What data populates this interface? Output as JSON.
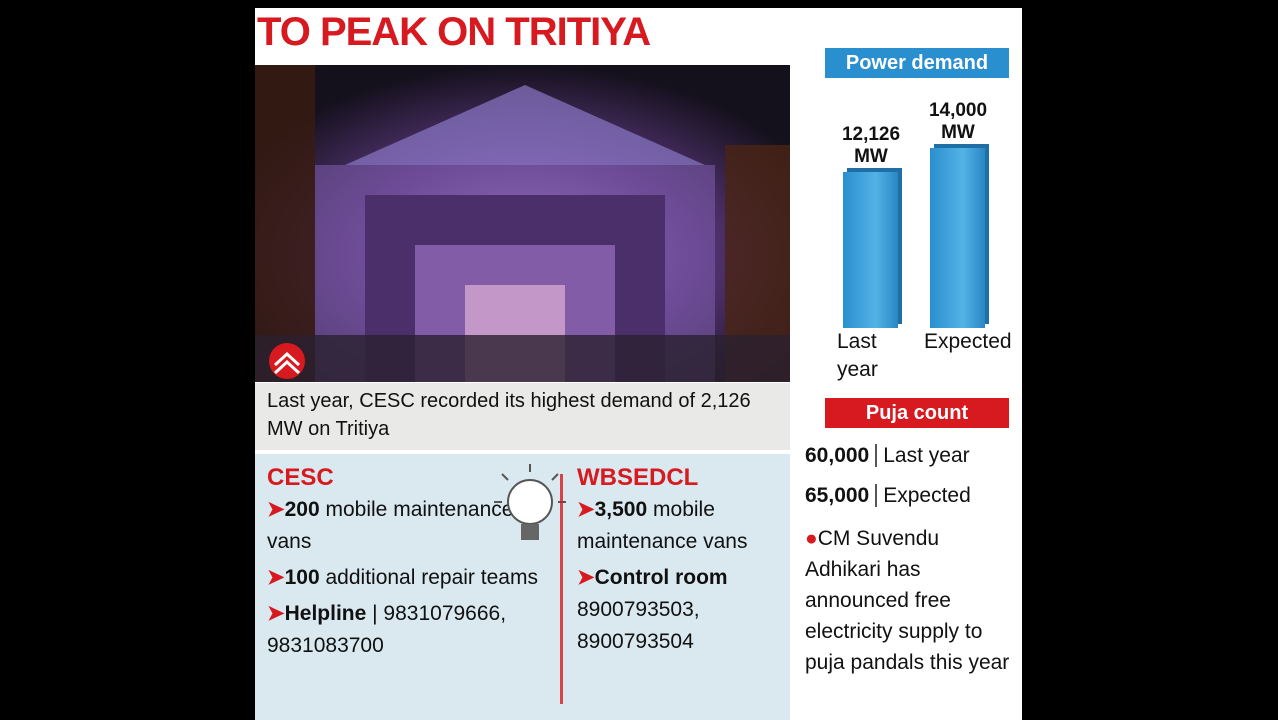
{
  "title": "TO PEAK ON TRITIYA",
  "power_demand": {
    "heading": "Power demand",
    "bars": [
      {
        "value": 12126,
        "value_label": "12,126 MW",
        "category": "Last year"
      },
      {
        "value": 14000,
        "value_label": "14,000 MW",
        "category": "Expected"
      }
    ]
  },
  "caption": "Last year, CESC recorded its highest demand of 2,126 MW on Tritiya",
  "cesc": {
    "name": "CESC",
    "items": [
      {
        "bold": "200",
        "text": "mobile maintenance vans"
      },
      {
        "bold": "100",
        "text": "additional repair teams"
      },
      {
        "bold": "Helpline",
        "text": "| 9831079666, 9831083700"
      }
    ]
  },
  "wbsedcl": {
    "name": "WBSEDCL",
    "items": [
      {
        "bold": "3,500",
        "text": "mobile maintenance vans"
      },
      {
        "bold": "Control room",
        "text": "8900793503, 8900793504"
      }
    ]
  },
  "puja_count": {
    "heading": "Puja count",
    "rows": [
      {
        "count": "60,000",
        "label": "Last year"
      },
      {
        "count": "65,000",
        "label": "Expected"
      }
    ]
  },
  "note": "CM Suvendu Adhikari has announced free electricity supply to puja pandals this year"
}
